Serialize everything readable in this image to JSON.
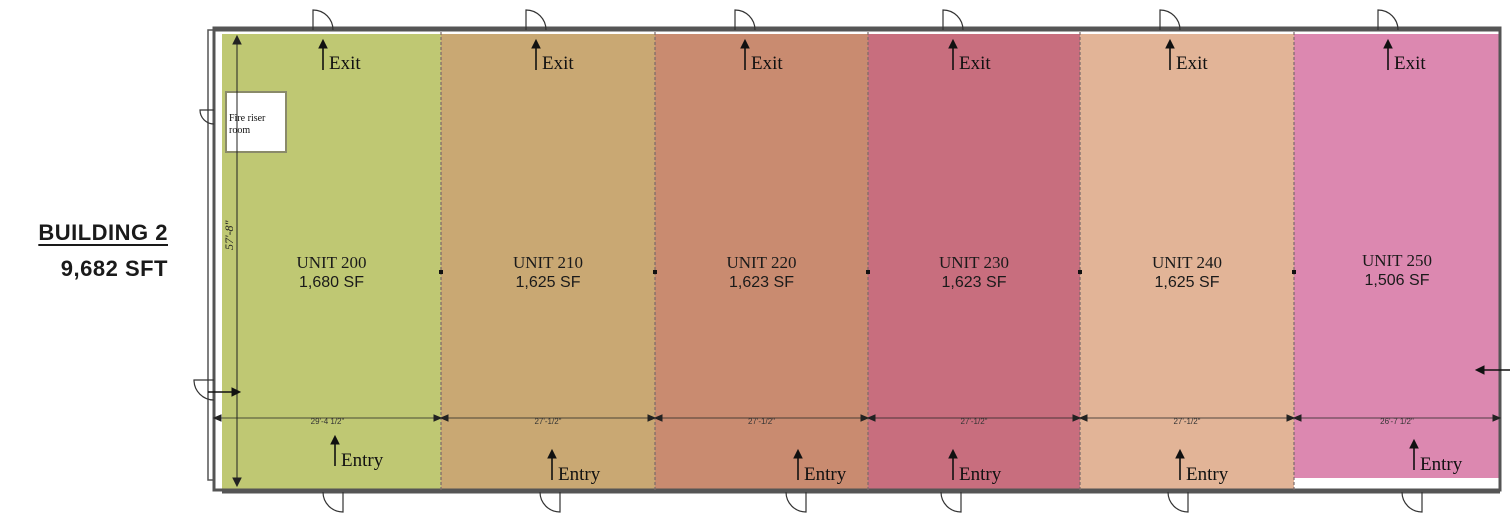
{
  "building": {
    "name": "BUILDING 2",
    "area": "9,682 SFT"
  },
  "exit_label": "Exit",
  "entry_label": "Entry",
  "fire_riser_label": "Fire riser room",
  "overall_depth": "57'-8\"",
  "units": [
    {
      "name": "UNIT 200",
      "area": "1,680 SF",
      "width_dim": "29'-4 1/2\"",
      "color": "#bfc873"
    },
    {
      "name": "UNIT 210",
      "area": "1,625 SF",
      "width_dim": "27'-1/2\"",
      "color": "#c9a873"
    },
    {
      "name": "UNIT 220",
      "area": "1,623 SF",
      "width_dim": "27'-1/2\"",
      "color": "#c98b70"
    },
    {
      "name": "UNIT 230",
      "area": "1,623 SF",
      "width_dim": "27'-1/2\"",
      "color": "#c86e7e"
    },
    {
      "name": "UNIT 240",
      "area": "1,625 SF",
      "width_dim": "27'-1/2\"",
      "color": "#e2b497"
    },
    {
      "name": "UNIT 250",
      "area": "1,506 SF",
      "width_dim": "26'-7 1/2\"",
      "color": "#dc88b0"
    }
  ]
}
